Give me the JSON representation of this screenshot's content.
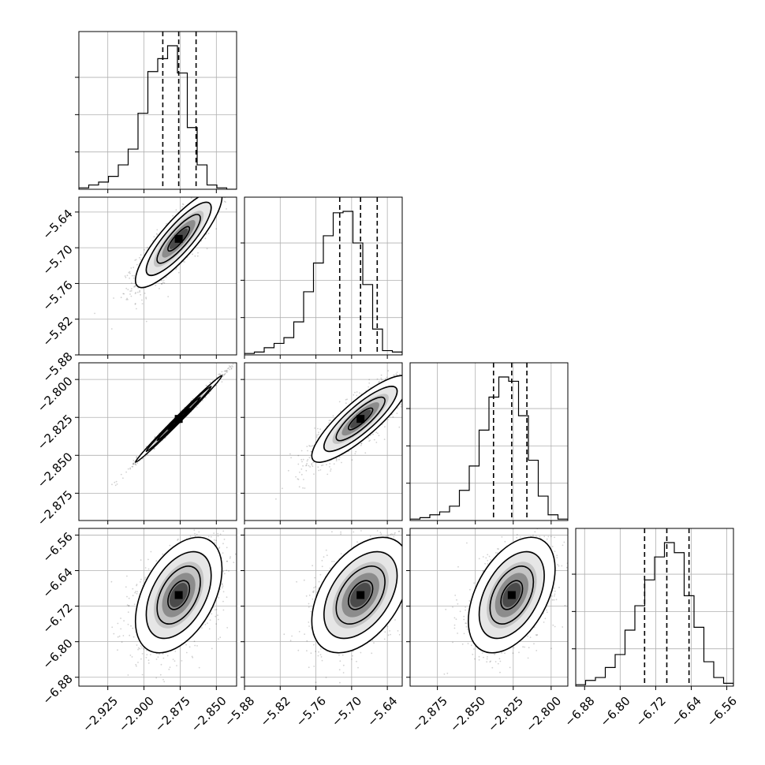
{
  "chart_data": {
    "type": "scatter",
    "subtype": "corner",
    "grid": true,
    "parameters": [
      {
        "range": [
          -2.945,
          -2.836
        ],
        "ticks": [
          -2.925,
          -2.9,
          -2.875,
          -2.85
        ],
        "tick_labels": [
          "−2.925",
          "−2.900",
          "−2.875",
          "−2.850"
        ],
        "quantiles": [
          -2.887,
          -2.876,
          -2.864
        ]
      },
      {
        "range": [
          -5.88,
          -5.615
        ],
        "ticks": [
          -5.88,
          -5.82,
          -5.76,
          -5.7,
          -5.64
        ],
        "tick_labels": [
          "−5.88",
          "−5.82",
          "−5.76",
          "−5.70",
          "−5.64"
        ],
        "quantiles": [
          -5.72,
          -5.685,
          -5.657
        ]
      },
      {
        "range": [
          -2.893,
          -2.789
        ],
        "ticks": [
          -2.875,
          -2.85,
          -2.825,
          -2.8
        ],
        "tick_labels": [
          "−2.875",
          "−2.850",
          "−2.825",
          "−2.800"
        ],
        "quantiles": [
          -2.838,
          -2.826,
          -2.816
        ]
      },
      {
        "range": [
          -6.9,
          -6.545
        ],
        "ticks": [
          -6.88,
          -6.8,
          -6.72,
          -6.64,
          -6.56
        ],
        "tick_labels": [
          "−6.88",
          "−6.80",
          "−6.72",
          "−6.64",
          "−6.56"
        ],
        "quantiles": [
          -6.745,
          -6.695,
          -6.645
        ]
      }
    ],
    "histograms": [
      [
        0.01,
        0.03,
        0.05,
        0.09,
        0.17,
        0.28,
        0.53,
        0.82,
        0.91,
        1.0,
        0.81,
        0.43,
        0.17,
        0.03,
        0.01,
        0.0
      ],
      [
        0.01,
        0.02,
        0.05,
        0.08,
        0.12,
        0.23,
        0.44,
        0.64,
        0.83,
        0.99,
        1.0,
        0.78,
        0.49,
        0.18,
        0.03,
        0.02
      ],
      [
        0.01,
        0.02,
        0.04,
        0.06,
        0.1,
        0.21,
        0.38,
        0.63,
        0.86,
        1.0,
        0.97,
        0.73,
        0.42,
        0.17,
        0.04,
        0.01
      ],
      [
        0.01,
        0.04,
        0.06,
        0.13,
        0.22,
        0.39,
        0.56,
        0.74,
        0.9,
        1.0,
        0.93,
        0.63,
        0.41,
        0.17,
        0.06,
        0.02
      ]
    ],
    "correlations": {
      "1-0": 0.85,
      "2-0": 0.995,
      "2-1": 0.85,
      "3-0": 0.45,
      "3-1": 0.45,
      "3-2": 0.45
    }
  }
}
